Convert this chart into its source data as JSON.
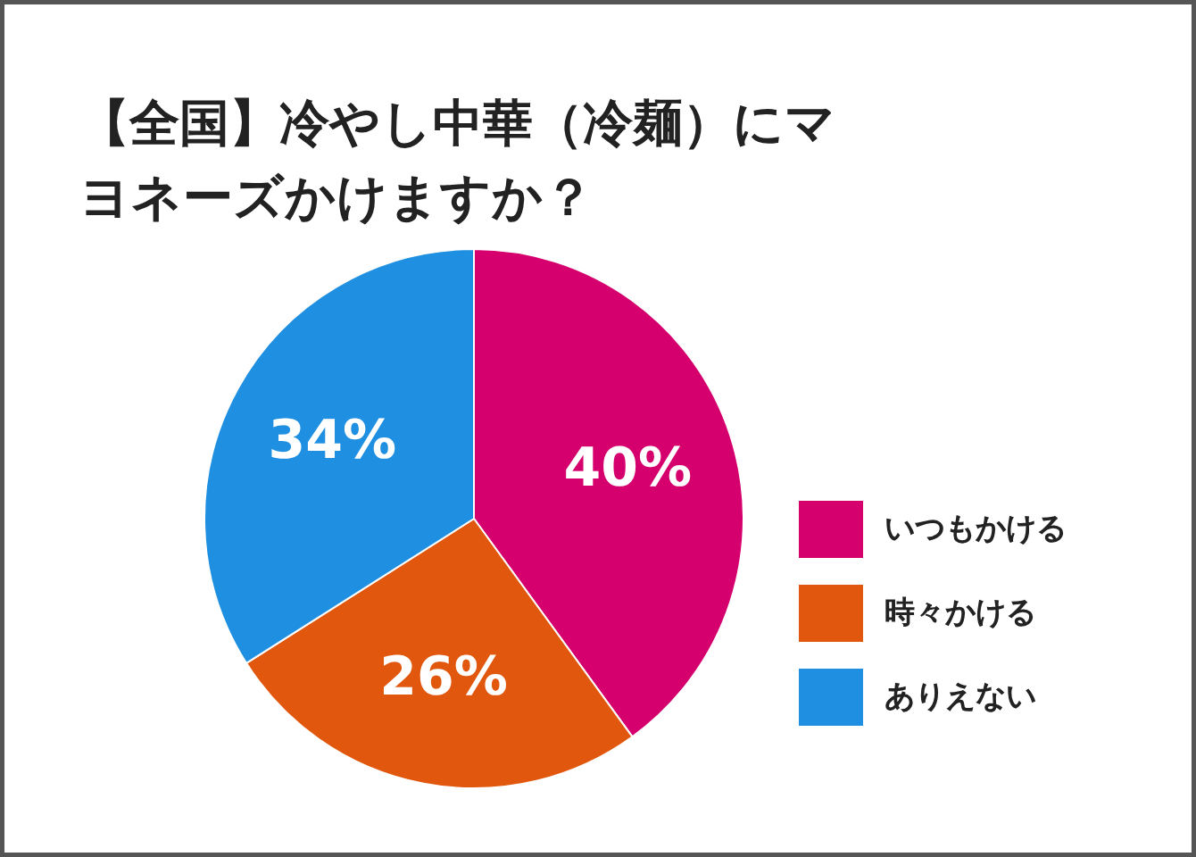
{
  "chart_data": {
    "type": "pie",
    "title": "【全国】冷やし中華（冷麺）にマヨネーズかけますか？",
    "categories": [
      "いつもかける",
      "時々かける",
      "ありえない"
    ],
    "values": [
      40,
      26,
      34
    ],
    "colors": [
      "#d5006d",
      "#e2570e",
      "#1f8fe1"
    ],
    "value_labels": [
      "40%",
      "26%",
      "34%"
    ],
    "legend": "right"
  }
}
